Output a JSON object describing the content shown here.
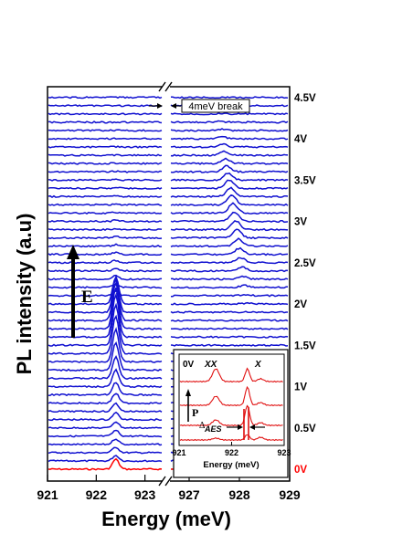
{
  "chart_data": {
    "type": "line",
    "title": "",
    "xlabel": "Energy (meV)",
    "ylabel": "PL intensity (a.u)",
    "x_segments": [
      [
        921,
        923.4
      ],
      [
        926.6,
        929
      ]
    ],
    "x_ticks": [
      "921",
      "922",
      "923",
      "927",
      "928",
      "929"
    ],
    "x_tick_values": [
      921,
      922,
      923,
      927,
      928,
      929
    ],
    "break_note": "4meV break",
    "field_arrow_label": "E",
    "voltage_labels": [
      "0V",
      "0.5V",
      "1V",
      "1.5V",
      "2V",
      "2.5V",
      "3V",
      "3.5V",
      "4V",
      "4.5V"
    ],
    "voltage_values": [
      0,
      0.5,
      1,
      1.5,
      2,
      2.5,
      3,
      3.5,
      4,
      4.5
    ],
    "trace_count": 46,
    "voltage_step_per_trace": 0.1,
    "peak_left_meV": 922.4,
    "peak_right_meV": 927.9,
    "colors": {
      "zero_bias": "#ff0000",
      "biased": "#1010d0",
      "inset": "#e01010"
    },
    "inset": {
      "xlabel": "Energy (meV)",
      "x_ticks": [
        "921",
        "922",
        "923"
      ],
      "x_tick_values": [
        921,
        922,
        923
      ],
      "label_bias": "0V",
      "label_xx": "XX",
      "label_x": "X",
      "power_arrow_label": "P",
      "splitting_symbol": "Δ",
      "splitting_subscript": "AES",
      "trace_count": 4
    }
  }
}
